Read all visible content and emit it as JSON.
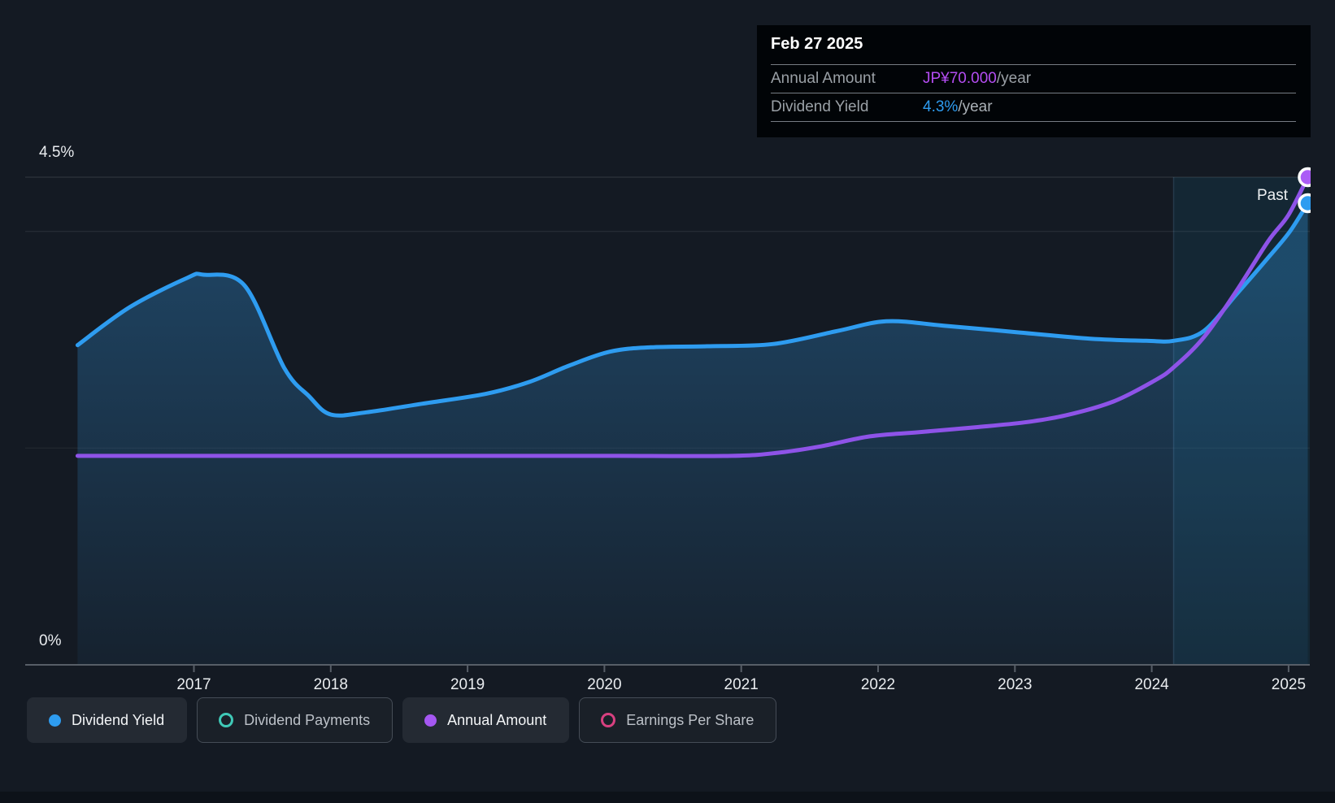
{
  "tooltip": {
    "date": "Feb 27 2025",
    "rows": [
      {
        "label": "Annual Amount",
        "value": "JP¥70.000",
        "suffix": "/year",
        "value_color": "#b44df2"
      },
      {
        "label": "Dividend Yield",
        "value": "4.3%",
        "suffix": "/year",
        "value_color": "#2e9cf0"
      }
    ]
  },
  "axis": {
    "y_top_label": "4.5%",
    "y_bottom_label": "0%",
    "years": [
      "2017",
      "2018",
      "2019",
      "2020",
      "2021",
      "2022",
      "2023",
      "2024",
      "2025"
    ]
  },
  "past_label": "Past",
  "legend": [
    {
      "label": "Dividend Yield",
      "marker": "dot",
      "color": "#2e9cf0",
      "active": true
    },
    {
      "label": "Dividend Payments",
      "marker": "ring",
      "color": "#3fc9b7",
      "active": false
    },
    {
      "label": "Annual Amount",
      "marker": "dot",
      "color": "#a557f2",
      "active": true
    },
    {
      "label": "Earnings Per Share",
      "marker": "ring",
      "color": "#d84080",
      "active": false
    }
  ],
  "colors": {
    "background": "#141a23",
    "yield_line": "#2e9cf0",
    "amount_line": "#8e53e8",
    "amount_marker": "#ab5cf6",
    "area_fill": "rgba(45,125,185,0.40)",
    "area_fill_bottom": "rgba(45,125,185,0.08)",
    "past_overlay": "rgba(30,160,210,0.10)",
    "axis_line": "#575e67",
    "gridline": "rgba(255,255,255,0.13)"
  },
  "chart_data": {
    "type": "line",
    "title": "Dividend history with forecast to Feb 27 2025",
    "x_range": [
      2016.15,
      2025.14
    ],
    "x_ticks": [
      2017,
      2018,
      2019,
      2020,
      2021,
      2022,
      2023,
      2024,
      2025
    ],
    "past_start_year": 2024.16,
    "grid": "horizontal-only",
    "legend_position": "bottom",
    "y_axis_pct": {
      "label_top": "4.5%",
      "label_bottom": "0%",
      "range": [
        0,
        4.5
      ],
      "gridline_values": [
        4.5,
        4.0,
        2.0
      ]
    },
    "y_axis_amount": {
      "unit": "JP¥",
      "range": [
        0,
        70
      ]
    },
    "series": [
      {
        "name": "Dividend Yield",
        "axis": "pct",
        "unit": "%",
        "color": "#2e9cf0",
        "area": true,
        "end_value_label": "4.3%/year",
        "points": [
          [
            2016.15,
            2.95
          ],
          [
            2016.53,
            3.3
          ],
          [
            2016.95,
            3.57
          ],
          [
            2017.07,
            3.6
          ],
          [
            2017.37,
            3.5
          ],
          [
            2017.66,
            2.74
          ],
          [
            2017.84,
            2.48
          ],
          [
            2018.0,
            2.31
          ],
          [
            2018.26,
            2.33
          ],
          [
            2018.67,
            2.41
          ],
          [
            2019.13,
            2.5
          ],
          [
            2019.45,
            2.61
          ],
          [
            2019.74,
            2.76
          ],
          [
            2020.04,
            2.89
          ],
          [
            2020.34,
            2.93
          ],
          [
            2020.75,
            2.94
          ],
          [
            2021.23,
            2.96
          ],
          [
            2021.7,
            3.08
          ],
          [
            2022.06,
            3.17
          ],
          [
            2022.48,
            3.13
          ],
          [
            2023.01,
            3.07
          ],
          [
            2023.55,
            3.01
          ],
          [
            2023.96,
            2.99
          ],
          [
            2024.16,
            2.99
          ],
          [
            2024.38,
            3.08
          ],
          [
            2024.62,
            3.42
          ],
          [
            2024.86,
            3.77
          ],
          [
            2025.01,
            4.0
          ],
          [
            2025.14,
            4.26
          ]
        ]
      },
      {
        "name": "Annual Amount",
        "axis": "amount",
        "unit": "JP¥",
        "color": "#8e53e8",
        "area": false,
        "end_value_label": "JP¥70.000/year",
        "points": [
          [
            2016.15,
            30
          ],
          [
            2017.0,
            30
          ],
          [
            2018.0,
            30
          ],
          [
            2019.0,
            30
          ],
          [
            2020.0,
            30
          ],
          [
            2020.93,
            30
          ],
          [
            2021.29,
            30.5
          ],
          [
            2021.59,
            31.4
          ],
          [
            2021.94,
            32.8
          ],
          [
            2022.3,
            33.4
          ],
          [
            2022.71,
            34.1
          ],
          [
            2023.07,
            34.8
          ],
          [
            2023.37,
            35.8
          ],
          [
            2023.72,
            37.8
          ],
          [
            2024.02,
            40.8
          ],
          [
            2024.16,
            42.7
          ],
          [
            2024.38,
            47.0
          ],
          [
            2024.62,
            53.7
          ],
          [
            2024.85,
            60.8
          ],
          [
            2025.0,
            64.6
          ],
          [
            2025.14,
            70
          ]
        ]
      }
    ]
  }
}
